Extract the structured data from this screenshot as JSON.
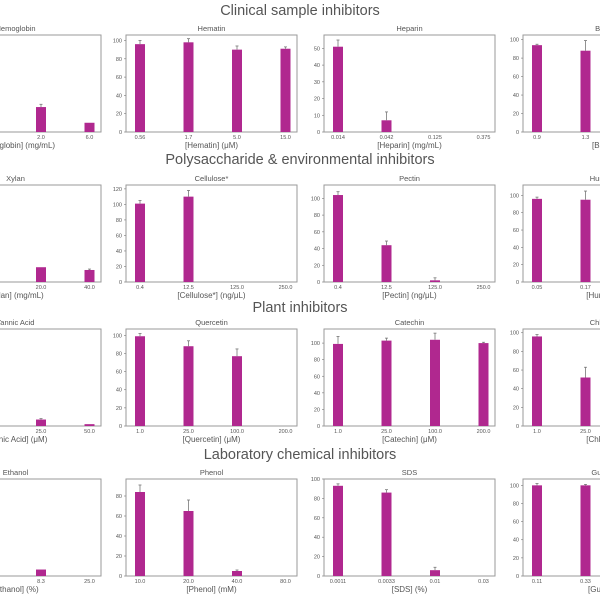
{
  "style": {
    "bar_color": "#b0288f",
    "error_color": "#777777",
    "frame_color": "#9a9a9a"
  },
  "chart_data": [
    {
      "section": "Clinical sample inhibitors",
      "panels": [
        {
          "type": "bar",
          "title": "Hemoglobin",
          "xlabel": "[Hemoglobin] (mg/mL)",
          "categories": [
            "",
            "",
            "2.0",
            "6.0"
          ],
          "values": [
            null,
            null,
            27,
            10
          ],
          "errors": [
            null,
            null,
            3,
            0
          ],
          "ylim": [
            0,
            105
          ],
          "yticks": []
        },
        {
          "type": "bar",
          "title": "Hematin",
          "xlabel": "[Hematin] (μM)",
          "categories": [
            "0.56",
            "1.7",
            "5.0",
            "15.0"
          ],
          "values": [
            96,
            98,
            90,
            91
          ],
          "errors": [
            4,
            4,
            4,
            2
          ],
          "ylim": [
            0,
            106
          ],
          "yticks": [
            0,
            20,
            40,
            60,
            80,
            100
          ]
        },
        {
          "type": "bar",
          "title": "Heparin",
          "xlabel": "[Heparin] (mg/mL)",
          "categories": [
            "0.014",
            "0.042",
            "0.125",
            "0.375"
          ],
          "values": [
            51,
            7,
            0,
            0
          ],
          "errors": [
            4,
            5,
            0,
            0
          ],
          "ylim": [
            0,
            58
          ],
          "yticks": [
            0,
            10,
            20,
            30,
            40,
            50
          ]
        },
        {
          "type": "bar",
          "title": "Bilirubin",
          "xlabel": "[Bilirubin]",
          "categories": [
            "0.9",
            "1.3"
          ],
          "values": [
            94,
            88
          ],
          "errors": [
            1,
            11
          ],
          "ylim": [
            0,
            105
          ],
          "yticks": [
            0,
            20,
            40,
            60,
            80,
            100
          ]
        }
      ]
    },
    {
      "section": "Polysaccharide & environmental inhibitors",
      "panels": [
        {
          "type": "bar",
          "title": "Xylan",
          "xlabel": "[Xylan] (mg/mL)",
          "categories": [
            "",
            "",
            "20.0",
            "40.0"
          ],
          "values": [
            null,
            null,
            16,
            13
          ],
          "errors": [
            null,
            null,
            0,
            1
          ],
          "ylim": [
            0,
            105
          ],
          "yticks": []
        },
        {
          "type": "bar",
          "title": "Cellulose*",
          "xlabel": "[Cellulose*] (ng/μL)",
          "categories": [
            "0.4",
            "12.5",
            "125.0",
            "250.0"
          ],
          "values": [
            101,
            110,
            0,
            0
          ],
          "errors": [
            4,
            8,
            0,
            0
          ],
          "ylim": [
            0,
            125
          ],
          "yticks": [
            0,
            20,
            40,
            60,
            80,
            100,
            120
          ]
        },
        {
          "type": "bar",
          "title": "Pectin",
          "xlabel": "[Pectin] (ng/μL)",
          "categories": [
            "0.4",
            "12.5",
            "125.0",
            "250.0"
          ],
          "values": [
            104,
            44,
            2,
            0
          ],
          "errors": [
            4,
            5,
            3,
            0
          ],
          "ylim": [
            0,
            116
          ],
          "yticks": [
            0,
            20,
            40,
            60,
            80,
            100
          ]
        },
        {
          "type": "bar",
          "title": "Humic Acid",
          "xlabel": "[Humic Acid]",
          "categories": [
            "0.05",
            "0.17"
          ],
          "values": [
            96,
            95
          ],
          "errors": [
            2,
            10
          ],
          "ylim": [
            0,
            112
          ],
          "yticks": [
            0,
            20,
            40,
            60,
            80,
            100
          ]
        }
      ]
    },
    {
      "section": "Plant inhibitors",
      "panels": [
        {
          "type": "bar",
          "title": "Tannic Acid",
          "xlabel": "[Tannic Acid] (μM)",
          "categories": [
            "",
            "",
            "25.0",
            "50.0"
          ],
          "values": [
            null,
            null,
            7,
            2
          ],
          "errors": [
            null,
            null,
            1,
            0
          ],
          "ylim": [
            0,
            105
          ],
          "yticks": []
        },
        {
          "type": "bar",
          "title": "Quercetin",
          "xlabel": "[Quercetin] (μM)",
          "categories": [
            "1.0",
            "25.0",
            "100.0",
            "200.0"
          ],
          "values": [
            99,
            88,
            77,
            0
          ],
          "errors": [
            3,
            6,
            8,
            0
          ],
          "ylim": [
            0,
            107
          ],
          "yticks": [
            0,
            20,
            40,
            60,
            80,
            100
          ]
        },
        {
          "type": "bar",
          "title": "Catechin",
          "xlabel": "[Catechin] (μM)",
          "categories": [
            "1.0",
            "25.0",
            "100.0",
            "200.0"
          ],
          "values": [
            99,
            103,
            104,
            100
          ],
          "errors": [
            9,
            3,
            8,
            1
          ],
          "ylim": [
            0,
            117
          ],
          "yticks": [
            0,
            20,
            40,
            60,
            80,
            100
          ]
        },
        {
          "type": "bar",
          "title": "Chlorophyll",
          "xlabel": "[Chlorophyll]",
          "categories": [
            "1.0",
            "25.0"
          ],
          "values": [
            96,
            52
          ],
          "errors": [
            2,
            11
          ],
          "ylim": [
            0,
            104
          ],
          "yticks": [
            0,
            20,
            40,
            60,
            80,
            100
          ]
        }
      ]
    },
    {
      "section": "Laboratory chemical inhibitors",
      "panels": [
        {
          "type": "bar",
          "title": "Ethanol",
          "xlabel": "[Ethanol] (%)",
          "categories": [
            "",
            "",
            "8.3",
            "25.0"
          ],
          "values": [
            null,
            null,
            7,
            0
          ],
          "errors": [
            null,
            null,
            0,
            0
          ],
          "ylim": [
            0,
            105
          ],
          "yticks": []
        },
        {
          "type": "bar",
          "title": "Phenol",
          "xlabel": "[Phenol] (mM)",
          "categories": [
            "10.0",
            "20.0",
            "40.0",
            "80.0"
          ],
          "values": [
            84,
            65,
            5,
            0
          ],
          "errors": [
            7,
            11,
            1,
            0
          ],
          "ylim": [
            0,
            97
          ],
          "yticks": [
            0,
            20,
            40,
            60,
            80
          ]
        },
        {
          "type": "bar",
          "title": "SDS",
          "xlabel": "[SDS] (%)",
          "categories": [
            "0.0011",
            "0.0033",
            "0.01",
            "0.03"
          ],
          "values": [
            93,
            86,
            6,
            0
          ],
          "errors": [
            2,
            3,
            3,
            0
          ],
          "ylim": [
            0,
            100
          ],
          "yticks": [
            0,
            20,
            40,
            60,
            80,
            100
          ]
        },
        {
          "type": "bar",
          "title": "Guanidine",
          "xlabel": "[Guanidine]",
          "categories": [
            "0.11",
            "0.33"
          ],
          "values": [
            100,
            100
          ],
          "errors": [
            2,
            1
          ],
          "ylim": [
            0,
            107
          ],
          "yticks": [
            0,
            20,
            40,
            60,
            80,
            100
          ]
        }
      ]
    }
  ]
}
